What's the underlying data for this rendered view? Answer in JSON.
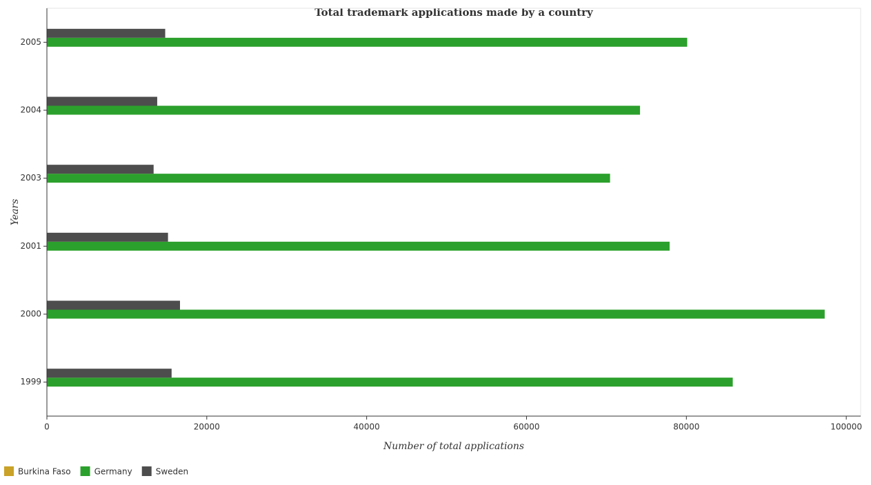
{
  "chart_data": {
    "type": "barh",
    "title": "Total trademark applications made by a country",
    "xlabel": "Number of total applications",
    "ylabel": "Years",
    "categories": [
      "1999",
      "2000",
      "2001",
      "2003",
      "2004",
      "2005"
    ],
    "series": [
      {
        "name": "Burkina Faso",
        "color": "#c9a227",
        "values": [
          20,
          20,
          20,
          20,
          20,
          20
        ]
      },
      {
        "name": "Germany",
        "color": "#2ca02c",
        "values": [
          85800,
          97300,
          77900,
          70450,
          74200,
          80100
        ]
      },
      {
        "name": "Sweden",
        "color": "#4d4d4d",
        "values": [
          15600,
          16650,
          15150,
          13350,
          13800,
          14800
        ]
      }
    ],
    "xlim": [
      0,
      101800
    ],
    "xticks": [
      0,
      20000,
      40000,
      60000,
      80000,
      100000
    ],
    "legend": "lower-left"
  }
}
